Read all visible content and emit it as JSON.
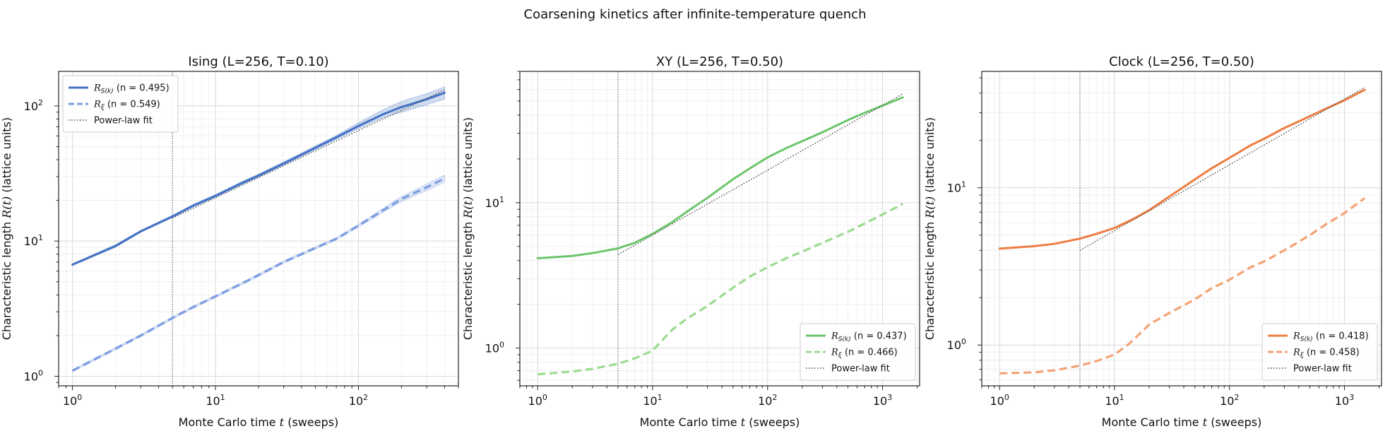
{
  "figure": {
    "suptitle": "Coarsening kinetics after infinite-temperature quench"
  },
  "chart_data": [
    {
      "type": "line",
      "title": "Ising (L=256, T=0.10)",
      "xlabel": "Monte Carlo time t (sweeps)",
      "ylabel": "Characteristic length R(t) (lattice units)",
      "xscale": "log",
      "yscale": "log",
      "xlim": [
        0.8,
        500
      ],
      "ylim": [
        0.85,
        180
      ],
      "xticks": [
        1,
        10,
        100
      ],
      "yticks": [
        1,
        10,
        100
      ],
      "grid": true,
      "legend_position": "upper left",
      "vline_x": 5,
      "series": [
        {
          "name": "R_S(k) (n = 0.495)",
          "sub": "S(k)",
          "n_label": "(n = 0.495)",
          "color": "#4472c4",
          "style": "solid",
          "band": true,
          "band_color": "#4472c4",
          "x": [
            1,
            2,
            3,
            5,
            7,
            10,
            15,
            20,
            30,
            50,
            70,
            100,
            150,
            200,
            300,
            400
          ],
          "y": [
            6.7,
            9.2,
            11.8,
            15.2,
            18.3,
            21.6,
            26.6,
            30.5,
            37.5,
            49.0,
            58.5,
            71.0,
            87.0,
            98.0,
            112.0,
            125.0
          ],
          "band_lo": [
            6.6,
            9.0,
            11.6,
            14.9,
            17.9,
            21.1,
            25.9,
            29.7,
            36.5,
            47.5,
            56.5,
            68.0,
            82.0,
            90.0,
            102.0,
            112.0
          ],
          "band_hi": [
            6.8,
            9.4,
            12.0,
            15.5,
            18.7,
            22.1,
            27.3,
            31.3,
            38.6,
            50.5,
            60.5,
            75.0,
            94.0,
            108.0,
            123.0,
            138.0
          ]
        },
        {
          "name": "R_ξ (n = 0.549)",
          "sub": "ξ",
          "n_label": "(n = 0.549)",
          "color": "#7b9de0",
          "style": "dashed",
          "band": true,
          "band_color": "#7b9de0",
          "x": [
            1,
            2,
            3,
            5,
            7,
            10,
            15,
            20,
            30,
            50,
            70,
            100,
            150,
            200,
            300,
            400
          ],
          "y": [
            1.1,
            1.6,
            2.0,
            2.7,
            3.25,
            3.9,
            4.8,
            5.6,
            7.0,
            8.9,
            10.4,
            13.0,
            17.0,
            20.5,
            25.0,
            29.0
          ],
          "band_lo": [
            1.08,
            1.57,
            1.96,
            2.65,
            3.19,
            3.83,
            4.71,
            5.49,
            6.86,
            8.72,
            10.19,
            12.7,
            16.4,
            19.6,
            23.6,
            27.2
          ],
          "band_hi": [
            1.12,
            1.63,
            2.04,
            2.75,
            3.31,
            3.97,
            4.89,
            5.71,
            7.14,
            9.08,
            10.61,
            13.3,
            17.6,
            21.4,
            26.4,
            30.8
          ]
        },
        {
          "name": "Power-law fit",
          "sub": "",
          "n_label": "Power-law fit",
          "color": "#444444",
          "style": "dotted",
          "x": [
            5,
            400
          ],
          "y": [
            14.8,
            131.0
          ]
        }
      ]
    },
    {
      "type": "line",
      "title": "XY (L=256, T=0.50)",
      "xlabel": "Monte Carlo time t (sweeps)",
      "ylabel": "Characteristic length R(t) (lattice units)",
      "xscale": "log",
      "yscale": "log",
      "xlim": [
        0.7,
        2100
      ],
      "ylim": [
        0.55,
        80
      ],
      "xticks": [
        1,
        10,
        100,
        1000
      ],
      "yticks": [
        1,
        10
      ],
      "grid": true,
      "legend_position": "lower right",
      "vline_x": 5,
      "series": [
        {
          "name": "R_S(k) (n = 0.437)",
          "sub": "S(k)",
          "n_label": "(n = 0.437)",
          "color": "#6cc66c",
          "style": "solid",
          "x": [
            1,
            2,
            3,
            5,
            7,
            10,
            15,
            20,
            30,
            50,
            70,
            100,
            150,
            200,
            300,
            500,
            700,
            1000,
            1500
          ],
          "y": [
            4.15,
            4.3,
            4.5,
            4.85,
            5.3,
            6.1,
            7.4,
            8.7,
            10.8,
            14.5,
            17.2,
            20.5,
            24.0,
            26.5,
            30.5,
            37.0,
            41.5,
            46.5,
            53.0
          ]
        },
        {
          "name": "R_ξ (n = 0.466)",
          "sub": "ξ",
          "n_label": "(n = 0.466)",
          "color": "#9adb8f",
          "style": "dashed",
          "x": [
            1,
            2,
            3,
            5,
            7,
            10,
            13,
            15,
            20,
            30,
            50,
            70,
            100,
            150,
            200,
            300,
            500,
            700,
            1000,
            1500
          ],
          "y": [
            0.66,
            0.69,
            0.72,
            0.78,
            0.85,
            0.96,
            1.2,
            1.35,
            1.6,
            1.95,
            2.6,
            3.1,
            3.6,
            4.2,
            4.6,
            5.3,
            6.3,
            7.2,
            8.3,
            9.8
          ]
        },
        {
          "name": "Power-law fit",
          "sub": "",
          "n_label": "Power-law fit",
          "color": "#444444",
          "style": "dotted",
          "x": [
            5,
            1500
          ],
          "y": [
            4.4,
            56.0
          ]
        }
      ]
    },
    {
      "type": "line",
      "title": "Clock (L=256, T=0.50)",
      "xlabel": "Monte Carlo time t (sweeps)",
      "ylabel": "Characteristic length R(t) (lattice units)",
      "xscale": "log",
      "yscale": "log",
      "xlim": [
        0.7,
        2100
      ],
      "ylim": [
        0.55,
        55
      ],
      "xticks": [
        1,
        10,
        100,
        1000
      ],
      "yticks": [
        1,
        10
      ],
      "grid": true,
      "legend_position": "lower right",
      "vline_x": 5,
      "series": [
        {
          "name": "R_S(k) (n = 0.418)",
          "sub": "S(k)",
          "n_label": "(n = 0.418)",
          "color": "#ed7d41",
          "style": "solid",
          "x": [
            1,
            2,
            3,
            5,
            7,
            10,
            15,
            20,
            30,
            50,
            70,
            100,
            150,
            200,
            300,
            500,
            700,
            1000,
            1500
          ],
          "y": [
            4.1,
            4.25,
            4.4,
            4.75,
            5.1,
            5.55,
            6.4,
            7.2,
            8.8,
            11.3,
            13.3,
            15.5,
            18.5,
            20.5,
            24.0,
            28.5,
            32.0,
            36.0,
            42.0
          ]
        },
        {
          "name": "R_ξ (n = 0.458)",
          "sub": "ξ",
          "n_label": "(n = 0.458)",
          "color": "#f4a274",
          "style": "dashed",
          "x": [
            1,
            2,
            3,
            5,
            7,
            10,
            13,
            15,
            20,
            30,
            50,
            70,
            100,
            150,
            200,
            300,
            500,
            700,
            1000,
            1500
          ],
          "y": [
            0.66,
            0.67,
            0.69,
            0.74,
            0.79,
            0.87,
            1.0,
            1.1,
            1.35,
            1.6,
            1.95,
            2.3,
            2.6,
            3.1,
            3.4,
            4.0,
            5.0,
            5.9,
            6.9,
            8.6
          ]
        },
        {
          "name": "Power-law fit",
          "sub": "",
          "n_label": "Power-law fit",
          "color": "#444444",
          "style": "dotted",
          "x": [
            5,
            1500
          ],
          "y": [
            4.0,
            43.5
          ]
        }
      ]
    }
  ]
}
